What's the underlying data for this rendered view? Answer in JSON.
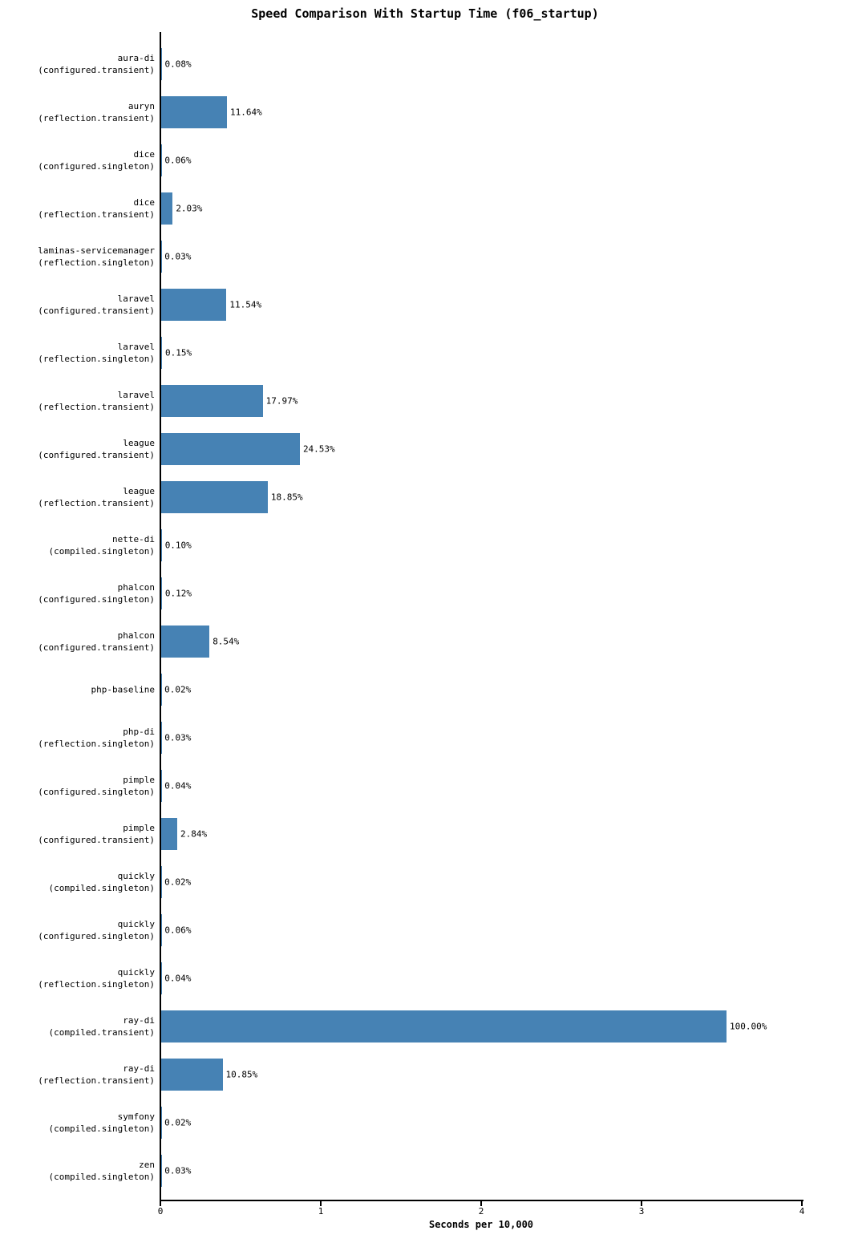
{
  "chart_data": {
    "type": "bar",
    "orientation": "horizontal",
    "title": "Speed Comparison With Startup Time (f06_startup)",
    "xlabel": "Seconds per 10,000",
    "xlim": [
      0,
      4
    ],
    "xticks": [
      0,
      1,
      2,
      3,
      4
    ],
    "grid": false,
    "legend": "none",
    "bar_color": "#4682B4",
    "value_unit": "percent-of-slowest",
    "rows": [
      {
        "name": "aura-di",
        "variant": "(configured.transient)",
        "pct": 0.08,
        "pct_label": "0.08%",
        "seconds": 0.0028
      },
      {
        "name": "auryn",
        "variant": "(reflection.transient)",
        "pct": 11.64,
        "pct_label": "11.64%",
        "seconds": 0.4103
      },
      {
        "name": "dice",
        "variant": "(configured.singleton)",
        "pct": 0.06,
        "pct_label": "0.06%",
        "seconds": 0.0021
      },
      {
        "name": "dice",
        "variant": "(reflection.transient)",
        "pct": 2.03,
        "pct_label": "2.03%",
        "seconds": 0.0716
      },
      {
        "name": "laminas-servicemanager",
        "variant": "(reflection.singleton)",
        "pct": 0.03,
        "pct_label": "0.03%",
        "seconds": 0.0011
      },
      {
        "name": "laravel",
        "variant": "(configured.transient)",
        "pct": 11.54,
        "pct_label": "11.54%",
        "seconds": 0.4068
      },
      {
        "name": "laravel",
        "variant": "(reflection.singleton)",
        "pct": 0.15,
        "pct_label": "0.15%",
        "seconds": 0.0053
      },
      {
        "name": "laravel",
        "variant": "(reflection.transient)",
        "pct": 17.97,
        "pct_label": "17.97%",
        "seconds": 0.6334
      },
      {
        "name": "league",
        "variant": "(configured.transient)",
        "pct": 24.53,
        "pct_label": "24.53%",
        "seconds": 0.8647
      },
      {
        "name": "league",
        "variant": "(reflection.transient)",
        "pct": 18.85,
        "pct_label": "18.85%",
        "seconds": 0.6645
      },
      {
        "name": "nette-di",
        "variant": "(compiled.singleton)",
        "pct": 0.1,
        "pct_label": "0.10%",
        "seconds": 0.0035
      },
      {
        "name": "phalcon",
        "variant": "(configured.singleton)",
        "pct": 0.12,
        "pct_label": "0.12%",
        "seconds": 0.0042
      },
      {
        "name": "phalcon",
        "variant": "(configured.transient)",
        "pct": 8.54,
        "pct_label": "8.54%",
        "seconds": 0.301
      },
      {
        "name": "php-baseline",
        "variant": "",
        "pct": 0.02,
        "pct_label": "0.02%",
        "seconds": 0.0007
      },
      {
        "name": "php-di",
        "variant": "(reflection.singleton)",
        "pct": 0.03,
        "pct_label": "0.03%",
        "seconds": 0.0011
      },
      {
        "name": "pimple",
        "variant": "(configured.singleton)",
        "pct": 0.04,
        "pct_label": "0.04%",
        "seconds": 0.0014
      },
      {
        "name": "pimple",
        "variant": "(configured.transient)",
        "pct": 2.84,
        "pct_label": "2.84%",
        "seconds": 0.1001
      },
      {
        "name": "quickly",
        "variant": "(compiled.singleton)",
        "pct": 0.02,
        "pct_label": "0.02%",
        "seconds": 0.0007
      },
      {
        "name": "quickly",
        "variant": "(configured.singleton)",
        "pct": 0.06,
        "pct_label": "0.06%",
        "seconds": 0.0021
      },
      {
        "name": "quickly",
        "variant": "(reflection.singleton)",
        "pct": 0.04,
        "pct_label": "0.04%",
        "seconds": 0.0014
      },
      {
        "name": "ray-di",
        "variant": "(compiled.transient)",
        "pct": 100.0,
        "pct_label": "100.00%",
        "seconds": 3.525
      },
      {
        "name": "ray-di",
        "variant": "(reflection.transient)",
        "pct": 10.85,
        "pct_label": "10.85%",
        "seconds": 0.3825
      },
      {
        "name": "symfony",
        "variant": "(compiled.singleton)",
        "pct": 0.02,
        "pct_label": "0.02%",
        "seconds": 0.0007
      },
      {
        "name": "zen",
        "variant": "(compiled.singleton)",
        "pct": 0.03,
        "pct_label": "0.03%",
        "seconds": 0.0011
      }
    ]
  }
}
